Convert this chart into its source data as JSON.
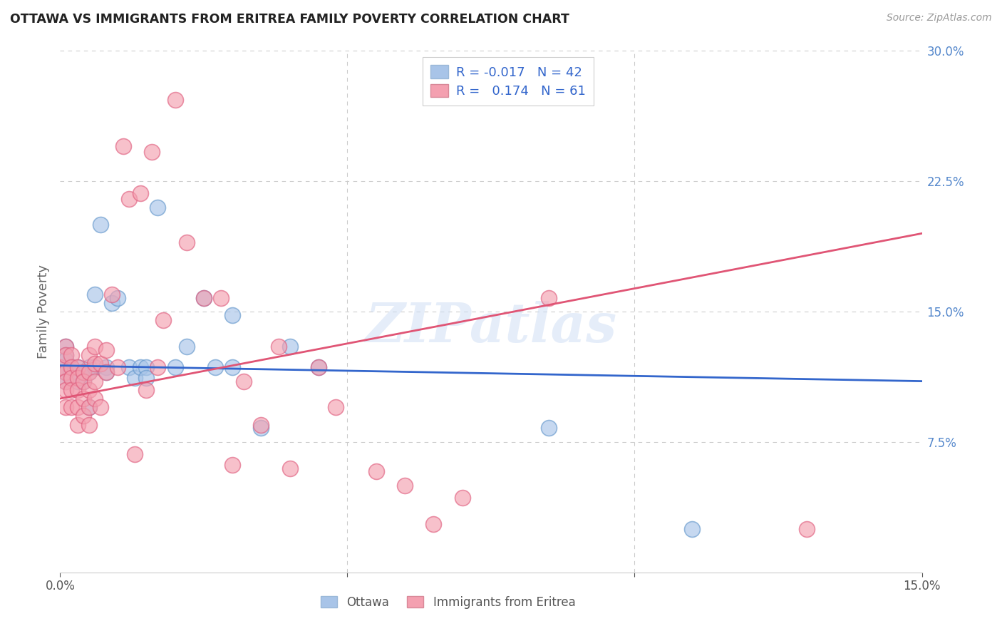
{
  "title": "OTTAWA VS IMMIGRANTS FROM ERITREA FAMILY POVERTY CORRELATION CHART",
  "source": "Source: ZipAtlas.com",
  "ylabel": "Family Poverty",
  "xlim": [
    0.0,
    0.15
  ],
  "ylim": [
    0.0,
    0.3
  ],
  "grid_color": "#cccccc",
  "background_color": "#ffffff",
  "ottawa_color": "#a8c4e8",
  "eritrea_color": "#f4a0b0",
  "ottawa_edge_color": "#6699cc",
  "eritrea_edge_color": "#e06080",
  "ottawa_line_color": "#3366cc",
  "eritrea_line_color": "#e05575",
  "legend_R_ottawa": "-0.017",
  "legend_N_ottawa": "42",
  "legend_R_eritrea": "0.174",
  "legend_N_eritrea": "61",
  "watermark": "ZIPatlas",
  "legend_label_ottawa": "Ottawa",
  "legend_label_eritrea": "Immigrants from Eritrea",
  "ottawa_x": [
    0.0,
    0.001,
    0.001,
    0.001,
    0.001,
    0.001,
    0.002,
    0.002,
    0.002,
    0.002,
    0.003,
    0.003,
    0.003,
    0.004,
    0.004,
    0.005,
    0.005,
    0.005,
    0.006,
    0.006,
    0.007,
    0.008,
    0.008,
    0.009,
    0.01,
    0.012,
    0.013,
    0.014,
    0.015,
    0.015,
    0.017,
    0.02,
    0.022,
    0.025,
    0.027,
    0.03,
    0.03,
    0.035,
    0.04,
    0.045,
    0.085,
    0.11
  ],
  "ottawa_y": [
    0.118,
    0.13,
    0.125,
    0.122,
    0.115,
    0.11,
    0.118,
    0.118,
    0.115,
    0.112,
    0.115,
    0.11,
    0.118,
    0.115,
    0.11,
    0.118,
    0.115,
    0.095,
    0.118,
    0.16,
    0.2,
    0.118,
    0.115,
    0.155,
    0.158,
    0.118,
    0.112,
    0.118,
    0.118,
    0.112,
    0.21,
    0.118,
    0.13,
    0.158,
    0.118,
    0.148,
    0.118,
    0.083,
    0.13,
    0.118,
    0.083,
    0.025
  ],
  "eritrea_x": [
    0.0,
    0.001,
    0.001,
    0.001,
    0.001,
    0.001,
    0.001,
    0.002,
    0.002,
    0.002,
    0.002,
    0.002,
    0.003,
    0.003,
    0.003,
    0.003,
    0.003,
    0.004,
    0.004,
    0.004,
    0.004,
    0.005,
    0.005,
    0.005,
    0.005,
    0.005,
    0.006,
    0.006,
    0.006,
    0.006,
    0.007,
    0.007,
    0.008,
    0.008,
    0.009,
    0.01,
    0.011,
    0.012,
    0.013,
    0.014,
    0.015,
    0.016,
    0.017,
    0.018,
    0.02,
    0.022,
    0.025,
    0.028,
    0.03,
    0.032,
    0.035,
    0.038,
    0.04,
    0.045,
    0.048,
    0.055,
    0.06,
    0.065,
    0.07,
    0.085,
    0.13
  ],
  "eritrea_y": [
    0.118,
    0.13,
    0.125,
    0.115,
    0.11,
    0.105,
    0.095,
    0.125,
    0.118,
    0.112,
    0.105,
    0.095,
    0.118,
    0.112,
    0.105,
    0.095,
    0.085,
    0.115,
    0.11,
    0.1,
    0.09,
    0.125,
    0.115,
    0.105,
    0.095,
    0.085,
    0.13,
    0.12,
    0.11,
    0.1,
    0.12,
    0.095,
    0.128,
    0.115,
    0.16,
    0.118,
    0.245,
    0.215,
    0.068,
    0.218,
    0.105,
    0.242,
    0.118,
    0.145,
    0.272,
    0.19,
    0.158,
    0.158,
    0.062,
    0.11,
    0.085,
    0.13,
    0.06,
    0.118,
    0.095,
    0.058,
    0.05,
    0.028,
    0.043,
    0.158,
    0.025
  ]
}
